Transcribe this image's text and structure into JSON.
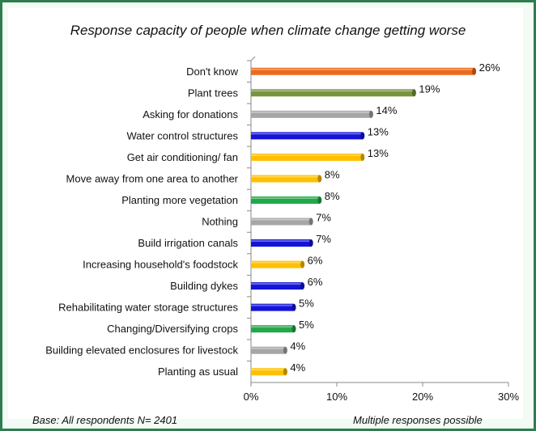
{
  "chart_data": {
    "type": "bar",
    "orientation": "horizontal",
    "title": "Response capacity of people when climate change getting worse",
    "categories": [
      "Don't know",
      "Plant trees",
      "Asking for donations",
      "Water control structures",
      "Get air conditioning/ fan",
      "Move away from one area to another",
      "Planting more vegetation",
      "Nothing",
      "Build irrigation canals",
      "Increasing household's foodstock",
      "Building dykes",
      "Rehabilitating water storage structures",
      "Changing/Diversifying crops",
      "Building elevated enclosures for livestock",
      "Planting as usual"
    ],
    "values": [
      26,
      19,
      14,
      13,
      13,
      8,
      8,
      7,
      7,
      6,
      6,
      5,
      5,
      4,
      4
    ],
    "value_labels": [
      "26%",
      "19%",
      "14%",
      "13%",
      "13%",
      "8%",
      "8%",
      "7%",
      "7%",
      "6%",
      "6%",
      "5%",
      "5%",
      "4%",
      "4%"
    ],
    "colors": [
      "#ed6a1d",
      "#77933c",
      "#a6a6a6",
      "#1414d8",
      "#ffc000",
      "#ffc000",
      "#22a84a",
      "#a6a6a6",
      "#1414d8",
      "#ffc000",
      "#1414d8",
      "#1414d8",
      "#22a84a",
      "#a6a6a6",
      "#ffc000"
    ],
    "xlim": [
      0,
      30
    ],
    "xticks": [
      "0%",
      "10%",
      "20%",
      "30%"
    ],
    "xlabel": "",
    "ylabel": "",
    "grid": false,
    "legend": "none"
  },
  "footer": {
    "base": "Base: All respondents   N= 2401",
    "note": "Multiple responses possible"
  }
}
